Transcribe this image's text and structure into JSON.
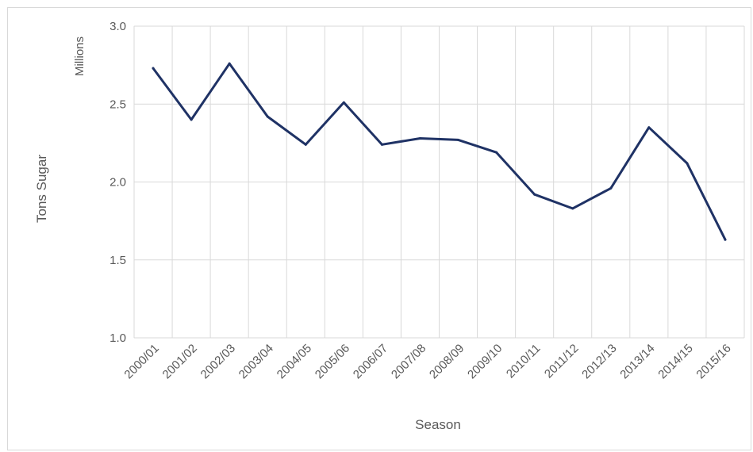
{
  "chart_data": {
    "type": "line",
    "title": "",
    "xlabel": "Season",
    "ylabel": "Tons Sugar",
    "y_unit_label": "Millions",
    "ylim": [
      1.0,
      3.0
    ],
    "y_ticks": [
      "1.0",
      "1.5",
      "2.0",
      "2.5",
      "3.0"
    ],
    "y_tick_values": [
      1.0,
      1.5,
      2.0,
      2.5,
      3.0
    ],
    "grid": true,
    "legend": "none",
    "line_color": "#1f3265",
    "grid_color": "#d9d9d9",
    "categories": [
      "2000/01",
      "2001/02",
      "2002/03",
      "2003/04",
      "2004/05",
      "2005/06",
      "2006/07",
      "2007/08",
      "2008/09",
      "2009/10",
      "2010/11",
      "2011/12",
      "2012/13",
      "2013/14",
      "2014/15",
      "2015/16"
    ],
    "series": [
      {
        "values": [
          2.73,
          2.4,
          2.76,
          2.42,
          2.24,
          2.51,
          2.24,
          2.28,
          2.27,
          2.19,
          1.92,
          1.83,
          1.96,
          2.35,
          2.12,
          1.63
        ]
      }
    ]
  }
}
